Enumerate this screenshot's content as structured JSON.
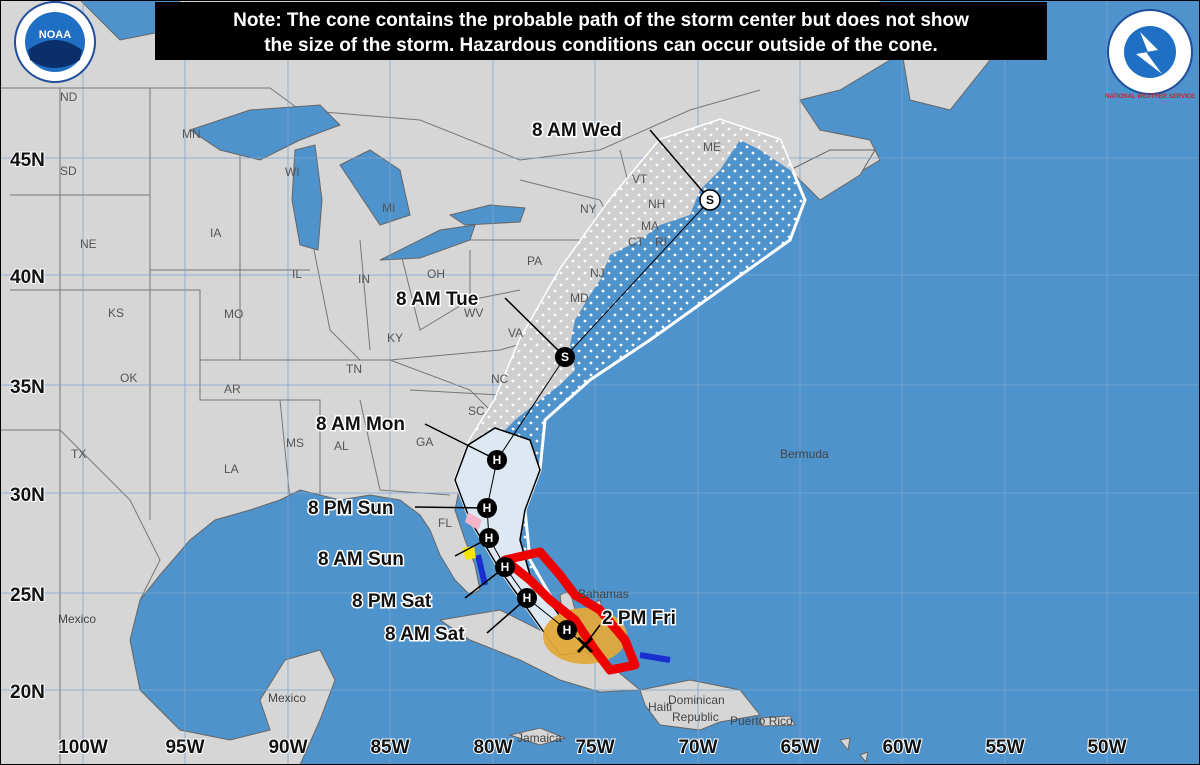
{
  "note": [
    "Note: The cone contains the probable path of the storm center but does not show",
    "the size of the storm. Hazardous conditions can occur outside of the cone."
  ],
  "logos": {
    "noaa": "NOAA",
    "nws": "NATIONAL WEATHER SERVICE"
  },
  "longitude_labels": [
    "100W",
    "95W",
    "90W",
    "85W",
    "80W",
    "75W",
    "70W",
    "65W",
    "60W",
    "55W",
    "50W"
  ],
  "latitude_labels": [
    "45N",
    "40N",
    "35N",
    "30N",
    "25N",
    "20N"
  ],
  "state_labels": [
    "ND",
    "SD",
    "MN",
    "WI",
    "MI",
    "IA",
    "NE",
    "IL",
    "IN",
    "OH",
    "PA",
    "NY",
    "VT",
    "NH",
    "ME",
    "MA",
    "CT",
    "RI",
    "NJ",
    "MD",
    "WV",
    "VA",
    "KY",
    "MO",
    "KS",
    "OK",
    "AR",
    "TN",
    "NC",
    "SC",
    "GA",
    "AL",
    "MS",
    "LA",
    "TX",
    "FL"
  ],
  "place_labels": [
    "Mexico",
    "Mexico",
    "Bermuda",
    "Bahamas",
    "Jamaica",
    "Haiti",
    "Dominican",
    "Republic",
    "Puerto Rico"
  ],
  "forecast_labels": [
    "2 PM Fri",
    "8 AM Sat",
    "8 PM Sat",
    "8 AM Sun",
    "8 PM Sun",
    "8 AM Mon",
    "8 AM Tue",
    "8 AM Wed"
  ],
  "track_symbols": [
    "H",
    "H",
    "H",
    "H",
    "H",
    "H",
    "S",
    "S"
  ]
}
